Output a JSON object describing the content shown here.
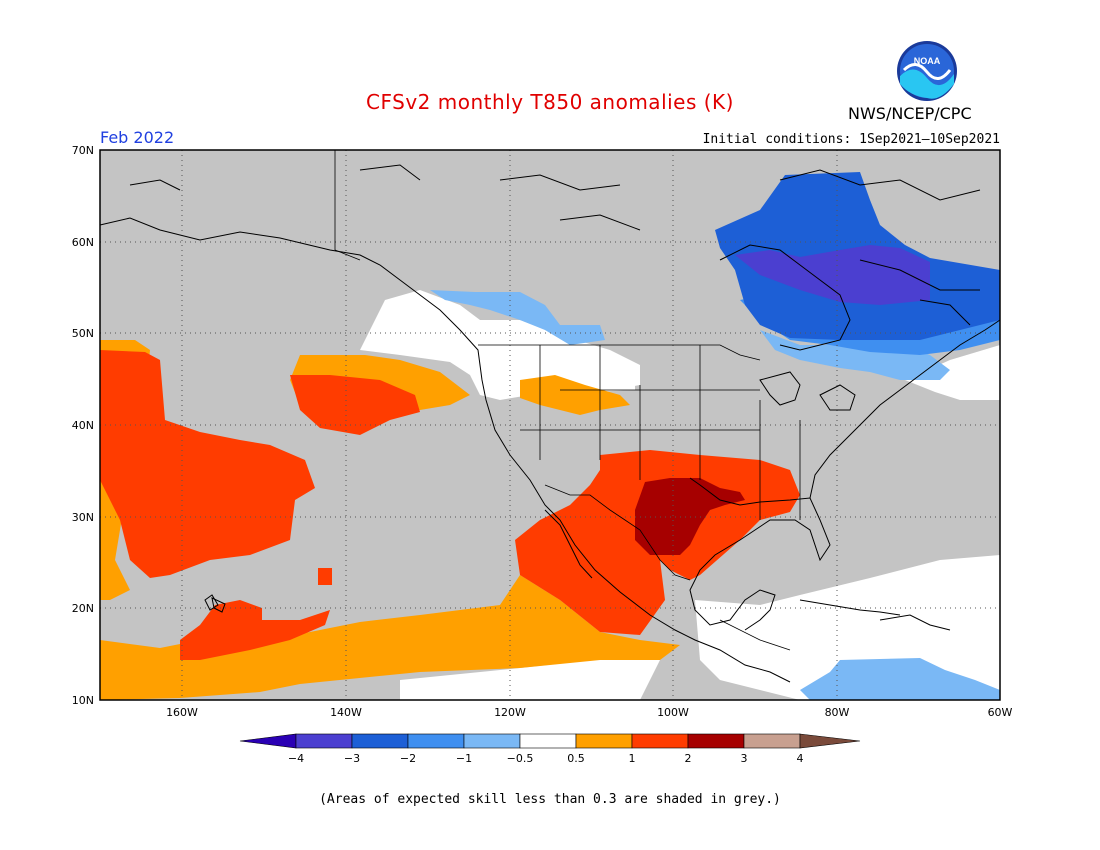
{
  "header": {
    "title": "CFSv2 monthly T850 anomalies (K)",
    "month": "Feb 2022",
    "initial_conditions": "Initial conditions: 1Sep2021–10Sep2021",
    "agency": "NWS/NCEP/CPC",
    "logo_text": "NOAA"
  },
  "map": {
    "lat_labels": [
      "70N",
      "60N",
      "50N",
      "40N",
      "30N",
      "20N",
      "10N"
    ],
    "lon_labels": [
      "160W",
      "140W",
      "120W",
      "100W",
      "80W",
      "60W"
    ],
    "lon_values": [
      -160,
      -140,
      -120,
      -100,
      -80,
      -60
    ],
    "lat_values": [
      70,
      60,
      50,
      40,
      30,
      20,
      10
    ],
    "extent": {
      "lon_min": -171,
      "lon_max": -60,
      "lat_min": 10,
      "lat_max": 70
    },
    "grey_color": "#c4c4c4"
  },
  "legend": {
    "tick_labels": [
      "−4",
      "−3",
      "−2",
      "−1",
      "−0.5",
      "0.5",
      "1",
      "2",
      "3",
      "4"
    ],
    "colors": [
      "#2a00b4",
      "#4b3fd0",
      "#1d5fd6",
      "#3f8ff0",
      "#7ab8f5",
      "#ffffff",
      "#ffa000",
      "#ff3c00",
      "#a60000",
      "#c8a090",
      "#7a4a3a"
    ]
  },
  "footer": {
    "note": "(Areas of expected skill less than 0.3 are shaded in grey.)"
  }
}
